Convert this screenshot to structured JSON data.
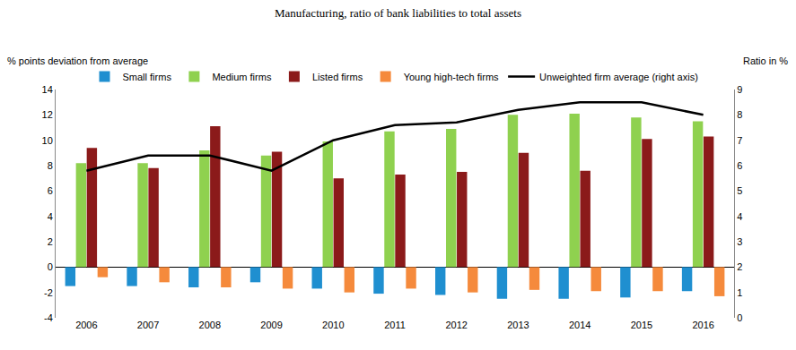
{
  "chart_data": {
    "type": "bar",
    "title": "Manufacturing, ratio of bank liabilities to total assets",
    "ylabel": "% points deviation from average",
    "y2label": "Ratio in %",
    "categories": [
      "2006",
      "2007",
      "2008",
      "2009",
      "2010",
      "2011",
      "2012",
      "2013",
      "2014",
      "2015",
      "2016"
    ],
    "series": [
      {
        "name": "Small firms",
        "color": "#1f8fd0",
        "values": [
          -1.5,
          -1.5,
          -1.6,
          -1.2,
          -1.7,
          -2.1,
          -2.2,
          -2.5,
          -2.5,
          -2.4,
          -1.9
        ]
      },
      {
        "name": "Medium firms",
        "color": "#8fd14f",
        "values": [
          8.2,
          8.2,
          9.2,
          8.8,
          9.9,
          10.7,
          10.9,
          12.0,
          12.1,
          11.8,
          11.5
        ]
      },
      {
        "name": "Listed firms",
        "color": "#8b1a1a",
        "values": [
          9.4,
          7.8,
          11.1,
          9.1,
          7.0,
          7.3,
          7.5,
          9.0,
          7.6,
          10.1,
          10.3
        ]
      },
      {
        "name": "Young high-tech firms",
        "color": "#f58a3c",
        "values": [
          -0.8,
          -1.2,
          -1.6,
          -1.7,
          -2.0,
          -1.7,
          -2.0,
          -1.8,
          -1.9,
          -1.9,
          -2.3
        ]
      },
      {
        "name": "Unweighted firm average (right axis)",
        "color": "#000000",
        "type": "line",
        "axis": "y2",
        "values": [
          5.8,
          6.4,
          6.4,
          5.8,
          7.0,
          7.6,
          7.7,
          8.2,
          8.5,
          8.5,
          8.0
        ]
      }
    ],
    "ylim": [
      -4,
      14
    ],
    "yticks": [
      -4,
      -2,
      0,
      2,
      4,
      6,
      8,
      10,
      12,
      14
    ],
    "y2lim": [
      0,
      9
    ],
    "y2ticks": [
      0,
      1,
      2,
      3,
      4,
      5,
      6,
      7,
      8,
      9
    ],
    "grid": false,
    "legend": "top"
  }
}
